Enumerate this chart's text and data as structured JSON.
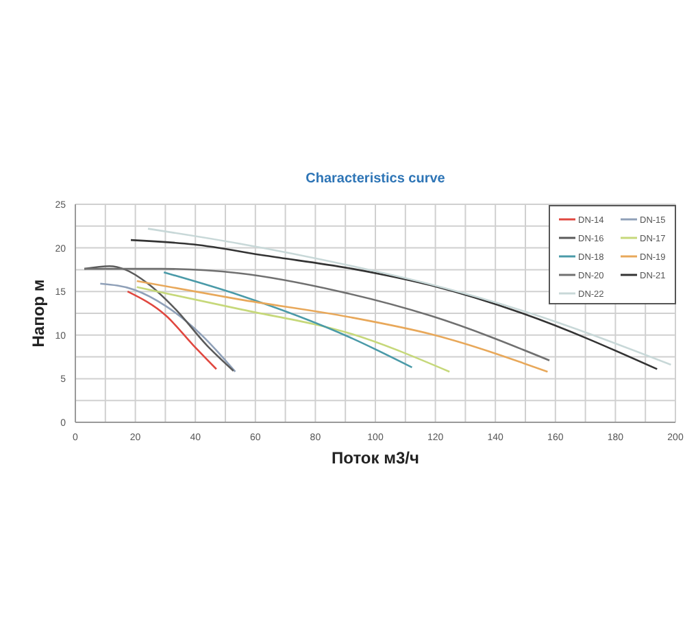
{
  "chart_data": {
    "type": "line",
    "title": "Characteristics curve",
    "xlabel": "Поток м3/ч",
    "ylabel": "Напор м",
    "xlim": [
      0,
      200
    ],
    "ylim": [
      0,
      25
    ],
    "xticks": [
      0,
      {
        "value": 10,
        "label": null
      },
      20,
      {
        "value": 30,
        "label": null
      },
      40,
      {
        "value": 50,
        "label": null
      },
      60,
      {
        "value": 70,
        "label": null
      },
      80,
      {
        "value": 90,
        "label": null
      },
      100,
      {
        "value": 110,
        "label": null
      },
      120,
      {
        "value": 130,
        "label": null
      },
      140,
      {
        "value": 150,
        "label": null
      },
      160,
      {
        "value": 170,
        "label": null
      },
      180,
      {
        "value": 190,
        "label": null
      },
      200
    ],
    "yticks": [
      0,
      {
        "value": 2.5,
        "label": null
      },
      5,
      {
        "value": 7.5,
        "label": null
      },
      10,
      {
        "value": 12.5,
        "label": null
      },
      15,
      {
        "value": 17.5,
        "label": null
      },
      20,
      {
        "value": 22.5,
        "label": null
      },
      25
    ],
    "grid": true,
    "legend": "top right",
    "marker": "none",
    "line_style": "solid",
    "series": [
      {
        "name": "DN-14",
        "color": "#e0473f",
        "x": [
          17.4,
          30.3,
          39.4,
          47
        ],
        "values": [
          15.0,
          12.2,
          8.8,
          6.1
        ]
      },
      {
        "name": "DN-15",
        "color": "#8fa0b8",
        "x": [
          8.3,
          19.7,
          30.3,
          42.4,
          53.3
        ],
        "values": [
          15.9,
          15.2,
          13.3,
          9.9,
          5.8
        ]
      },
      {
        "name": "DN-16",
        "color": "#5a5a5a",
        "x": [
          3,
          11.4,
          16.7,
          24.2,
          33.3,
          43.9,
          52.7
        ],
        "values": [
          17.6,
          17.9,
          17.5,
          15.9,
          13.0,
          8.8,
          5.9
        ]
      },
      {
        "name": "DN-17",
        "color": "#c6d87a",
        "x": [
          20.5,
          54.5,
          92.4,
          124.7
        ],
        "values": [
          15.5,
          13.0,
          10.1,
          5.8
        ]
      },
      {
        "name": "DN-18",
        "color": "#4a9aa8",
        "x": [
          29.5,
          54.5,
          92.4,
          112.2
        ],
        "values": [
          17.2,
          14.6,
          9.6,
          6.3
        ]
      },
      {
        "name": "DN-19",
        "color": "#e8a85a",
        "x": [
          20.5,
          54.5,
          92.4,
          118.6,
          157.4
        ],
        "values": [
          16.2,
          14.1,
          12.0,
          10.1,
          5.8
        ]
      },
      {
        "name": "DN-20",
        "color": "#707070",
        "x": [
          3,
          28.8,
          54.5,
          88.1,
          118.6,
          158
        ],
        "values": [
          17.6,
          17.6,
          17.1,
          15.0,
          12.2,
          7.1
        ]
      },
      {
        "name": "DN-21",
        "color": "#333333",
        "x": [
          18.5,
          39.4,
          63.6,
          92.4,
          118.6,
          149,
          193.9
        ],
        "values": [
          20.9,
          20.4,
          19.1,
          17.6,
          15.7,
          12.5,
          6.1
        ]
      },
      {
        "name": "DN-22",
        "color": "#c8d8d8",
        "x": [
          24.2,
          54.5,
          92.4,
          118.6,
          149,
          198.5
        ],
        "values": [
          22.2,
          20.5,
          17.9,
          15.8,
          12.8,
          6.6
        ]
      }
    ]
  }
}
